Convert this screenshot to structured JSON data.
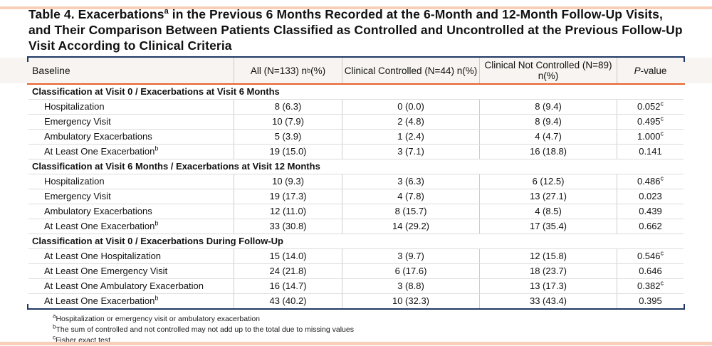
{
  "colors": {
    "accent_navy": "#1f3864",
    "accent_orange": "#e8622c",
    "header_band_bg": "#f7f4f1",
    "frame_salmon": "#f8cfb8",
    "grid_line": "#cccccc",
    "row_line": "#dcdcdc"
  },
  "title": {
    "pre": "Table 4. Exacerbations",
    "sup": "a",
    "rest": " in the Previous 6 Months Recorded at the 6-Month and 12-Month Follow-Up Visits, and Their Comparison Between Patients Classified as Controlled and Uncontrolled at the Previous Follow-Up Visit According to Clinical Criteria"
  },
  "header": {
    "baseline": "Baseline",
    "all_pre": "All (N=133) n",
    "all_sup": "b",
    "all_post": "(%)",
    "controlled": "Clinical Controlled (N=44) n(%)",
    "not_controlled": "Clinical Not Controlled (N=89) n(%)",
    "p_italic": "P",
    "p_rest": "-value"
  },
  "sections": [
    {
      "title": "Classification at Visit 0 / Exacerbations at Visit 6 Months",
      "rows": [
        {
          "label": "Hospitalization",
          "all": "8 (6.3)",
          "controlled": "0 (0.0)",
          "not_controlled": "8 (9.4)",
          "p": "0.052",
          "p_sup": "c"
        },
        {
          "label": "Emergency Visit",
          "all": "10 (7.9)",
          "controlled": "2 (4.8)",
          "not_controlled": "8 (9.4)",
          "p": "0.495",
          "p_sup": "c"
        },
        {
          "label": "Ambulatory Exacerbations",
          "all": "5 (3.9)",
          "controlled": "1 (2.4)",
          "not_controlled": "4 (4.7)",
          "p": "1.000",
          "p_sup": "c"
        },
        {
          "label": "At Least One Exacerbation",
          "label_sup": "b",
          "all": "19 (15.0)",
          "controlled": "3 (7.1)",
          "not_controlled": "16 (18.8)",
          "p": "0.141"
        }
      ]
    },
    {
      "title": "Classification at Visit 6 Months / Exacerbations at Visit 12 Months",
      "rows": [
        {
          "label": "Hospitalization",
          "all": "10 (9.3)",
          "controlled": "3 (6.3)",
          "not_controlled": "6 (12.5)",
          "p": "0.486",
          "p_sup": "c"
        },
        {
          "label": "Emergency Visit",
          "all": "19 (17.3)",
          "controlled": "4 (7.8)",
          "not_controlled": "13 (27.1)",
          "p": "0.023"
        },
        {
          "label": "Ambulatory Exacerbations",
          "all": "12 (11.0)",
          "controlled": "8 (15.7)",
          "not_controlled": "4 (8.5)",
          "p": "0.439"
        },
        {
          "label": "At Least One Exacerbation",
          "label_sup": "b",
          "all": "33 (30.8)",
          "controlled": "14 (29.2)",
          "not_controlled": "17 (35.4)",
          "p": "0.662"
        }
      ]
    },
    {
      "title": "Classification at Visit 0 / Exacerbations During Follow-Up",
      "rows": [
        {
          "label": "At Least One Hospitalization",
          "all": "15 (14.0)",
          "controlled": "3 (9.7)",
          "not_controlled": "12 (15.8)",
          "p": "0.546",
          "p_sup": "c"
        },
        {
          "label": "At Least One Emergency Visit",
          "all": "24 (21.8)",
          "controlled": "6 (17.6)",
          "not_controlled": "18 (23.7)",
          "p": "0.646"
        },
        {
          "label": "At Least One Ambulatory Exacerbation",
          "all": "16 (14.7)",
          "controlled": "3 (8.8)",
          "not_controlled": "13 (17.3)",
          "p": "0.382",
          "p_sup": "c"
        },
        {
          "label": "At Least One Exacerbation",
          "label_sup": "b",
          "all": "43 (40.2)",
          "controlled": "10 (32.3)",
          "not_controlled": "33 (43.4)",
          "p": "0.395"
        }
      ]
    }
  ],
  "footnotes": [
    {
      "marker": "a",
      "text": "Hospitalization or emergency visit or ambulatory exacerbation"
    },
    {
      "marker": "b",
      "text": "The sum of controlled and not controlled may not add up to the total due to missing values"
    },
    {
      "marker": "c",
      "text": "Fisher exact test"
    }
  ]
}
